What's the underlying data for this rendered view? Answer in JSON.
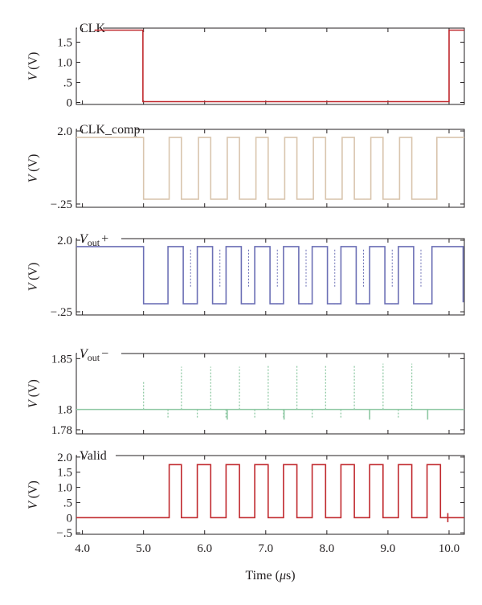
{
  "chart_data": {
    "type": "line",
    "xlabel": "Time (μs)",
    "xlim": [
      3.9,
      10.25
    ],
    "xticks": [
      4.0,
      5.0,
      6.0,
      7.0,
      8.0,
      9.0,
      10.0
    ],
    "xtick_labels": [
      "4.0",
      "5.0",
      "6.0",
      "7.0",
      "8.0",
      "9.0",
      "10.0"
    ],
    "panels": [
      {
        "id": "clk",
        "title": "CLK",
        "ylabel": "V (V)",
        "ylim": [
          -0.05,
          1.85
        ],
        "yticks": [
          0,
          0.5,
          1.0,
          1.5
        ],
        "ytick_labels": [
          "0",
          ".5",
          "1.0",
          "1.5"
        ],
        "color": "#c0282d",
        "series": [
          {
            "points": [
              [
                4.2,
                1.8
              ],
              [
                4.99,
                1.8
              ],
              [
                4.99,
                0.02
              ],
              [
                10.0,
                0.02
              ],
              [
                10.0,
                1.8
              ],
              [
                10.25,
                1.8
              ]
            ]
          }
        ]
      },
      {
        "id": "clk_comp",
        "title": "CLK_comp",
        "ylabel": "V (V)",
        "ylim": [
          -0.35,
          2.05
        ],
        "yticks": [
          -0.25,
          2.0
        ],
        "ytick_labels": [
          "−.25",
          "2.0"
        ],
        "color": "#d9c5ae",
        "high": 1.8,
        "low": -0.1,
        "first_fall": 5.0,
        "high_pulses": [
          [
            5.42,
            5.62
          ],
          [
            5.9,
            6.1
          ],
          [
            6.37,
            6.57
          ],
          [
            6.84,
            7.04
          ],
          [
            7.31,
            7.51
          ],
          [
            7.78,
            7.98
          ],
          [
            8.25,
            8.45
          ],
          [
            8.72,
            8.92
          ],
          [
            9.19,
            9.39
          ]
        ],
        "final_rise": 9.8
      },
      {
        "id": "vout_plus",
        "title": "V",
        "title_sub": "out",
        "title_suffix": "+",
        "ylabel": "V (V)",
        "ylim": [
          -0.35,
          2.05
        ],
        "yticks": [
          -0.25,
          2.0
        ],
        "ytick_labels": [
          "−.25",
          "2.0"
        ],
        "color": "#6b6fb5",
        "high": 1.8,
        "low": 0.0,
        "first_fall": 5.0,
        "high_pulses": [
          [
            5.4,
            5.65
          ],
          [
            5.88,
            6.13
          ],
          [
            6.35,
            6.6
          ],
          [
            6.82,
            7.07
          ],
          [
            7.29,
            7.54
          ],
          [
            7.76,
            8.01
          ],
          [
            8.23,
            8.48
          ],
          [
            8.7,
            8.95
          ],
          [
            9.17,
            9.42
          ]
        ],
        "final_rise": 9.72,
        "final_fall": 10.25
      },
      {
        "id": "vout_minus",
        "title": "V",
        "title_sub": "out",
        "title_suffix": "−",
        "ylabel": "V (V)",
        "ylim": [
          1.776,
          1.855
        ],
        "yticks": [
          1.78,
          1.8,
          1.85
        ],
        "ytick_labels": [
          "1.78",
          "1.8",
          "1.85"
        ],
        "color": "#8fc9a4",
        "baseline": 1.8,
        "spikes_up": [
          [
            5.0,
            1.828
          ],
          [
            5.62,
            1.842
          ],
          [
            6.1,
            1.842
          ],
          [
            6.57,
            1.842
          ],
          [
            7.04,
            1.843
          ],
          [
            7.51,
            1.843
          ],
          [
            7.98,
            1.844
          ],
          [
            8.45,
            1.844
          ],
          [
            8.92,
            1.845
          ],
          [
            9.39,
            1.845
          ]
        ],
        "spikes_down": [
          [
            5.4,
            1.792
          ],
          [
            5.88,
            1.791
          ],
          [
            6.35,
            1.792
          ],
          [
            6.82,
            1.792
          ],
          [
            7.29,
            1.792
          ],
          [
            7.76,
            1.792
          ],
          [
            8.23,
            1.792
          ],
          [
            8.7,
            1.792
          ],
          [
            9.17,
            1.792
          ]
        ],
        "dips": [
          [
            6.37,
            1.79
          ],
          [
            7.3,
            1.79
          ],
          [
            8.7,
            1.79
          ],
          [
            9.65,
            1.79
          ]
        ]
      },
      {
        "id": "valid",
        "title": "Valid",
        "ylabel": "V (V)",
        "ylim": [
          -0.55,
          2.05
        ],
        "yticks": [
          -0.5,
          0,
          0.5,
          1.0,
          1.5,
          2.0
        ],
        "ytick_labels": [
          "−.5",
          "0",
          ".5",
          "1.0",
          "1.5",
          "2.0"
        ],
        "color": "#c0282d",
        "high": 1.75,
        "low": 0.0,
        "high_pulses": [
          [
            5.42,
            5.62
          ],
          [
            5.88,
            6.1
          ],
          [
            6.35,
            6.57
          ],
          [
            6.82,
            7.04
          ],
          [
            7.29,
            7.51
          ],
          [
            7.76,
            7.98
          ],
          [
            8.23,
            8.45
          ],
          [
            8.7,
            8.92
          ],
          [
            9.17,
            9.39
          ],
          [
            9.64,
            9.86
          ]
        ],
        "tail_end": 10.25
      }
    ]
  }
}
